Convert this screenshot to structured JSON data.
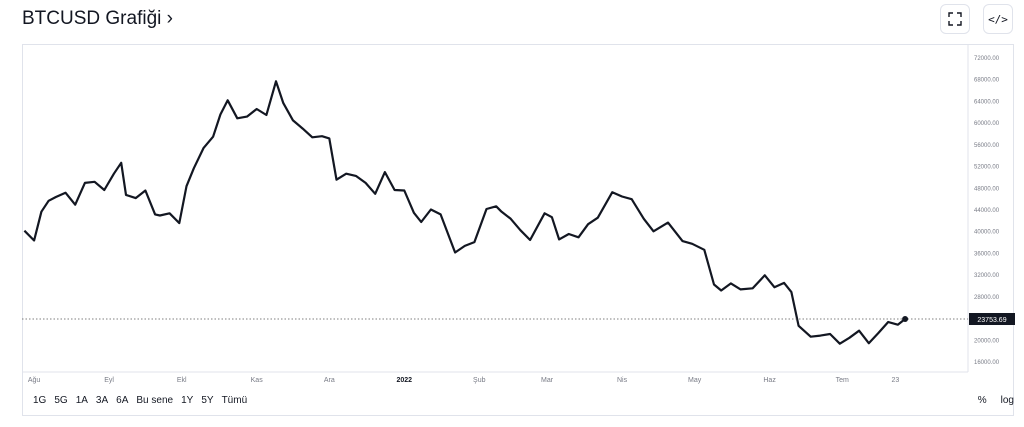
{
  "header": {
    "title": "BTCUSD Grafiği ›",
    "fullscreen_icon": "fullscreen-icon",
    "embed_icon": "code-icon"
  },
  "range_buttons": [
    "1G",
    "5G",
    "1A",
    "3A",
    "6A",
    "Bu sene",
    "1Y",
    "5Y",
    "Tümü"
  ],
  "scale_buttons": [
    "%",
    "log"
  ],
  "colors": {
    "line": "#131722",
    "grid": "#f0f3fa",
    "axis_text": "#787b86",
    "price_label_bg": "#131722"
  },
  "chart_data": {
    "type": "line",
    "title": "",
    "xlabel": "",
    "ylabel": "",
    "grid": false,
    "ylim": [
      14000,
      74000
    ],
    "y_ticks": [
      "72000.00",
      "68000.00",
      "64000.00",
      "60000.00",
      "56000.00",
      "52000.00",
      "48000.00",
      "44000.00",
      "40000.00",
      "36000.00",
      "32000.00",
      "28000.00",
      "20000.00",
      "16000.00"
    ],
    "x_ticks": [
      {
        "label": "Ağu",
        "date": "2021-08-01"
      },
      {
        "label": "Eyl",
        "date": "2021-09-01"
      },
      {
        "label": "Ekl",
        "date": "2021-10-01"
      },
      {
        "label": "Kas",
        "date": "2021-11-01"
      },
      {
        "label": "Ara",
        "date": "2021-12-01"
      },
      {
        "label": "2022",
        "date": "2022-01-01"
      },
      {
        "label": "Şub",
        "date": "2022-02-01"
      },
      {
        "label": "Mar",
        "date": "2022-03-01"
      },
      {
        "label": "Nis",
        "date": "2022-04-01"
      },
      {
        "label": "May",
        "date": "2022-05-01"
      },
      {
        "label": "Haz",
        "date": "2022-06-01"
      },
      {
        "label": "Tem",
        "date": "2022-07-01"
      },
      {
        "label": "23",
        "date": "2022-07-23"
      }
    ],
    "last_price_label": "23753.69",
    "last_price": 23753.69,
    "series": [
      {
        "x": [
          "2021-07-28",
          "2021-08-01",
          "2021-08-04",
          "2021-08-07",
          "2021-08-10",
          "2021-08-14",
          "2021-08-18",
          "2021-08-22",
          "2021-08-26",
          "2021-08-30",
          "2021-09-03",
          "2021-09-06",
          "2021-09-08",
          "2021-09-12",
          "2021-09-16",
          "2021-09-20",
          "2021-09-22",
          "2021-09-26",
          "2021-09-30",
          "2021-10-03",
          "2021-10-06",
          "2021-10-10",
          "2021-10-14",
          "2021-10-17",
          "2021-10-20",
          "2021-10-24",
          "2021-10-28",
          "2021-11-01",
          "2021-11-05",
          "2021-11-09",
          "2021-11-12",
          "2021-11-16",
          "2021-11-20",
          "2021-11-24",
          "2021-11-28",
          "2021-12-01",
          "2021-12-04",
          "2021-12-08",
          "2021-12-12",
          "2021-12-16",
          "2021-12-20",
          "2021-12-24",
          "2021-12-28",
          "2022-01-01",
          "2022-01-05",
          "2022-01-08",
          "2022-01-12",
          "2022-01-16",
          "2022-01-22",
          "2022-01-26",
          "2022-01-30",
          "2022-02-04",
          "2022-02-08",
          "2022-02-10",
          "2022-02-14",
          "2022-02-18",
          "2022-02-22",
          "2022-02-28",
          "2022-03-03",
          "2022-03-06",
          "2022-03-10",
          "2022-03-14",
          "2022-03-18",
          "2022-03-22",
          "2022-03-28",
          "2022-04-01",
          "2022-04-05",
          "2022-04-10",
          "2022-04-14",
          "2022-04-20",
          "2022-04-26",
          "2022-04-30",
          "2022-05-05",
          "2022-05-09",
          "2022-05-12",
          "2022-05-16",
          "2022-05-20",
          "2022-05-25",
          "2022-05-30",
          "2022-06-03",
          "2022-06-07",
          "2022-06-10",
          "2022-06-13",
          "2022-06-18",
          "2022-06-22",
          "2022-06-26",
          "2022-06-30",
          "2022-07-04",
          "2022-07-08",
          "2022-07-12",
          "2022-07-16",
          "2022-07-20",
          "2022-07-24",
          "2022-07-27"
        ],
        "values": [
          40000,
          38200,
          43500,
          45500,
          46200,
          47000,
          44800,
          48800,
          49000,
          47500,
          50500,
          52500,
          46600,
          46000,
          47400,
          43000,
          42800,
          43200,
          41400,
          48200,
          51500,
          55200,
          57300,
          61400,
          64000,
          60700,
          61000,
          62400,
          61300,
          67500,
          63500,
          60300,
          58800,
          57200,
          57400,
          57000,
          49400,
          50500,
          50100,
          48800,
          46800,
          50800,
          47500,
          47400,
          43300,
          41600,
          43900,
          43000,
          36000,
          37200,
          37900,
          44000,
          44500,
          43600,
          42200,
          40100,
          38300,
          43200,
          42500,
          38400,
          39400,
          38800,
          41200,
          42400,
          47100,
          46300,
          45800,
          42200,
          39900,
          41500,
          38100,
          37600,
          36500,
          30100,
          29000,
          30300,
          29200,
          29400,
          31800,
          29600,
          30400,
          28700,
          22500,
          20500,
          20700,
          21000,
          19200,
          20300,
          21600,
          19300,
          21200,
          23200,
          22700,
          23754
        ]
      }
    ]
  }
}
